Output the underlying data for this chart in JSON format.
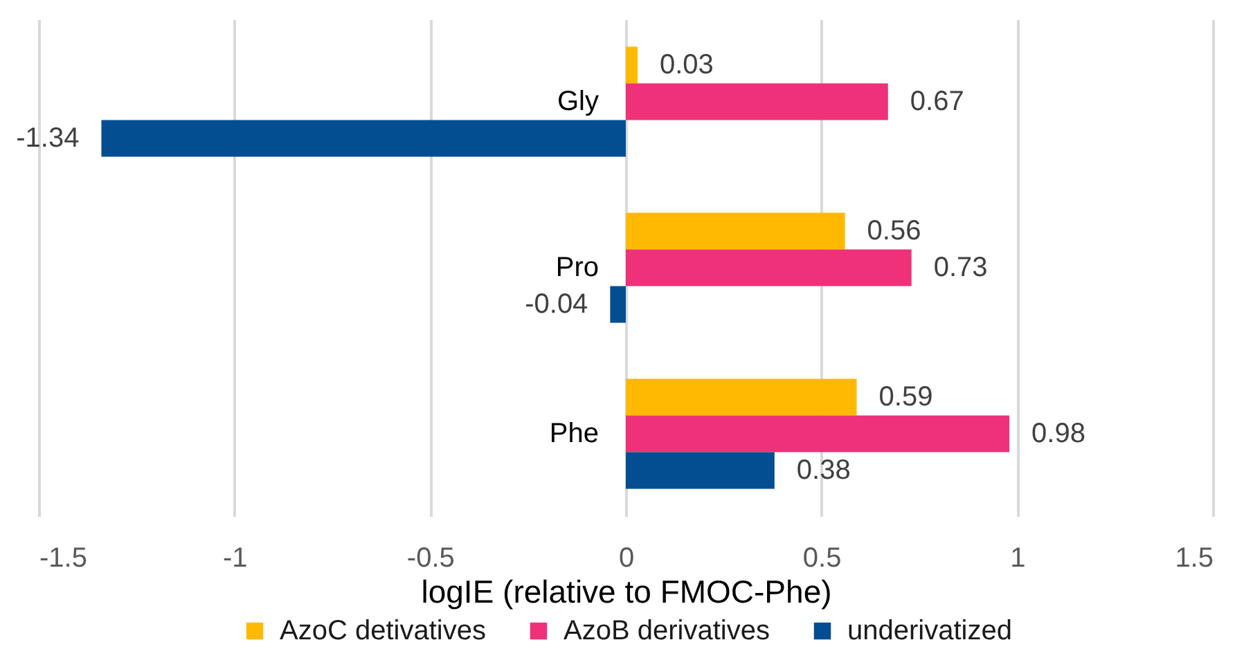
{
  "chart_data": {
    "type": "bar",
    "orientation": "horizontal",
    "categories": [
      "Gly",
      "Pro",
      "Phe"
    ],
    "series": [
      {
        "name": "AzoC detivatives",
        "color": "#ffb900",
        "values": [
          0.03,
          0.56,
          0.59
        ]
      },
      {
        "name": "AzoB derivatives",
        "color": "#ee3179",
        "values": [
          0.67,
          0.73,
          0.98
        ]
      },
      {
        "name": "underivatized",
        "color": "#034e91",
        "values": [
          -1.34,
          -0.04,
          0.38
        ]
      }
    ],
    "xlabel": "logIE (relative to FMOC-Phe)",
    "xlim": [
      -1.5,
      1.5
    ],
    "xticks": [
      -1.5,
      -1,
      -0.5,
      0,
      0.5,
      1,
      1.5
    ],
    "grid": "x",
    "legend": "bottom",
    "data_labels": true
  }
}
